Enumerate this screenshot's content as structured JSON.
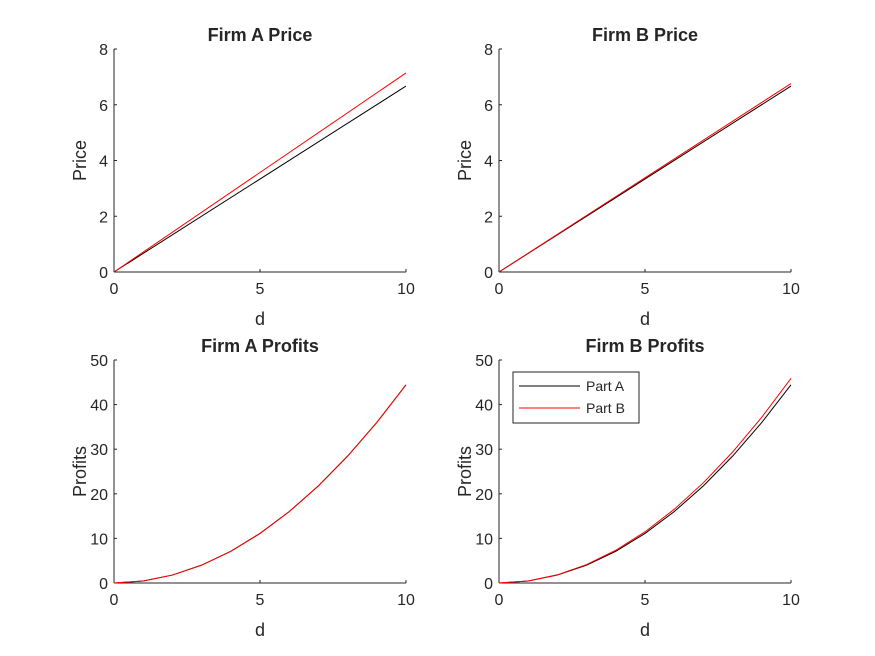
{
  "chart_data": [
    {
      "type": "line",
      "title": "Firm A Price",
      "xlabel": "d",
      "ylabel": "Price",
      "xlim": [
        0,
        10
      ],
      "ylim": [
        0,
        8
      ],
      "xticks": [
        0,
        5,
        10
      ],
      "yticks": [
        0,
        2,
        4,
        6,
        8
      ],
      "series": [
        {
          "color": "#000000",
          "x": [
            0,
            10
          ],
          "y": [
            0,
            6.67
          ]
        },
        {
          "color": "#ff0000",
          "x": [
            0,
            10
          ],
          "y": [
            0,
            7.14
          ]
        }
      ]
    },
    {
      "type": "line",
      "title": "Firm B Price",
      "xlabel": "d",
      "ylabel": "Price",
      "xlim": [
        0,
        10
      ],
      "ylim": [
        0,
        8
      ],
      "xticks": [
        0,
        5,
        10
      ],
      "yticks": [
        0,
        2,
        4,
        6,
        8
      ],
      "series": [
        {
          "color": "#000000",
          "x": [
            0,
            10
          ],
          "y": [
            0,
            6.67
          ]
        },
        {
          "color": "#ff0000",
          "x": [
            0,
            10
          ],
          "y": [
            0,
            6.76
          ]
        }
      ]
    },
    {
      "type": "line",
      "title": "Firm A Profits",
      "xlabel": "d",
      "ylabel": "Profits",
      "xlim": [
        0,
        10
      ],
      "ylim": [
        0,
        50
      ],
      "xticks": [
        0,
        5,
        10
      ],
      "yticks": [
        0,
        10,
        20,
        30,
        40,
        50
      ],
      "series": [
        {
          "color": "#000000",
          "x": [
            0,
            1,
            2,
            3,
            4,
            5,
            6,
            7,
            8,
            9,
            10
          ],
          "y": [
            0,
            0.44,
            1.78,
            4.0,
            7.11,
            11.11,
            16.0,
            21.78,
            28.44,
            36.0,
            44.44
          ]
        },
        {
          "color": "#ff0000",
          "x": [
            0,
            1,
            2,
            3,
            4,
            5,
            6,
            7,
            8,
            9,
            10
          ],
          "y": [
            0,
            0.44,
            1.78,
            4.0,
            7.11,
            11.11,
            16.0,
            21.78,
            28.44,
            36.0,
            44.44
          ]
        }
      ]
    },
    {
      "type": "line",
      "title": "Firm B Profits",
      "xlabel": "d",
      "ylabel": "Profits",
      "xlim": [
        0,
        10
      ],
      "ylim": [
        0,
        50
      ],
      "xticks": [
        0,
        5,
        10
      ],
      "yticks": [
        0,
        10,
        20,
        30,
        40,
        50
      ],
      "legend": {
        "location": "top-left",
        "entries": [
          {
            "label": "Part A",
            "color": "#000000"
          },
          {
            "label": "Part B",
            "color": "#ff0000"
          }
        ]
      },
      "series": [
        {
          "name": "Part A",
          "color": "#000000",
          "x": [
            0,
            1,
            2,
            3,
            4,
            5,
            6,
            7,
            8,
            9,
            10
          ],
          "y": [
            0,
            0.44,
            1.78,
            4.0,
            7.11,
            11.11,
            16.0,
            21.78,
            28.44,
            36.0,
            44.44
          ]
        },
        {
          "name": "Part B",
          "color": "#ff0000",
          "x": [
            0,
            1,
            2,
            3,
            4,
            5,
            6,
            7,
            8,
            9,
            10
          ],
          "y": [
            0,
            0.46,
            1.84,
            4.13,
            7.34,
            11.47,
            16.52,
            22.49,
            29.37,
            37.17,
            45.89
          ]
        }
      ]
    }
  ]
}
